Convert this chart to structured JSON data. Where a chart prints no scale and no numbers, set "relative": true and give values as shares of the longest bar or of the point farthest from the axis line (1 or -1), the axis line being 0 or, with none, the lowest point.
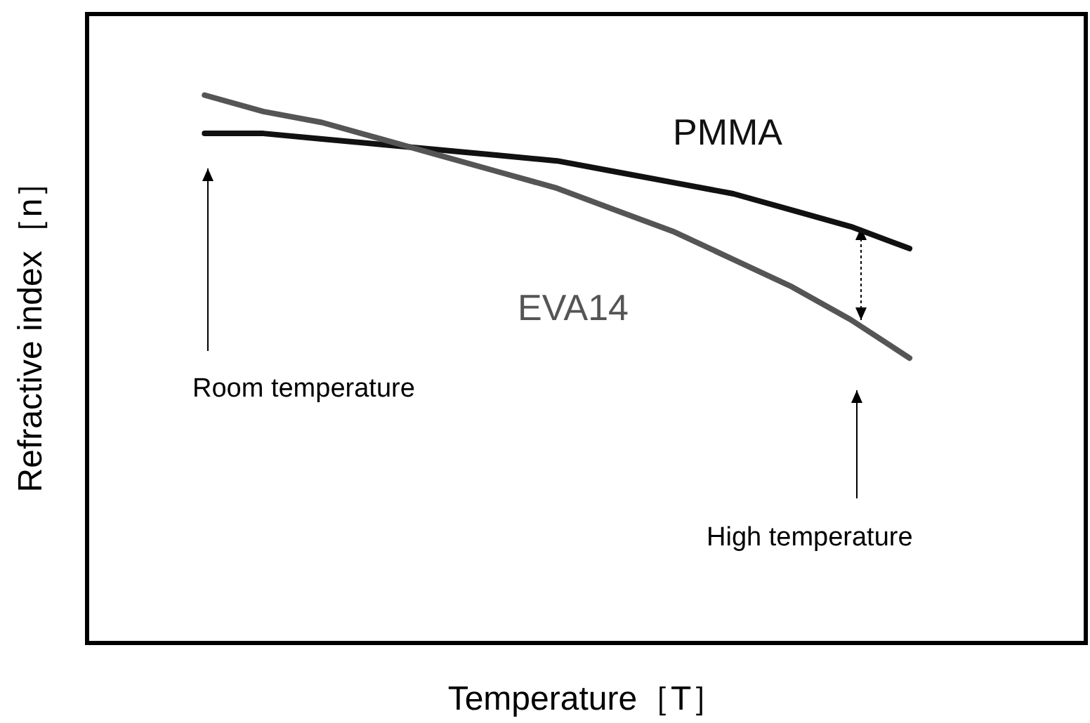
{
  "chart_data": {
    "type": "line",
    "relative": true,
    "xlabel": "Temperature［T］",
    "ylabel": "Refractive index［n］",
    "grid": false,
    "legend": false,
    "marker": "none",
    "line_style": "solid",
    "categories": [
      null,
      null,
      null,
      null,
      null,
      null,
      null,
      null,
      null,
      null,
      null,
      null,
      null,
      null,
      null,
      null,
      null,
      null
    ],
    "series": [
      {
        "name": "PMMA",
        "color": "#111111",
        "values": [
          null,
          null,
          0.93,
          0.93,
          0.92,
          0.91,
          0.9,
          0.89,
          0.88,
          0.86,
          0.84,
          0.82,
          0.79,
          0.76,
          0.72,
          null,
          null,
          null
        ]
      },
      {
        "name": "EVA14",
        "color": "#555555",
        "values": [
          null,
          null,
          1.0,
          0.97,
          0.95,
          0.92,
          0.89,
          0.86,
          0.83,
          0.79,
          0.75,
          0.7,
          0.65,
          0.59,
          0.52,
          null,
          null,
          null
        ]
      }
    ],
    "annotations": [
      "Room temperature",
      "High temperature"
    ]
  }
}
